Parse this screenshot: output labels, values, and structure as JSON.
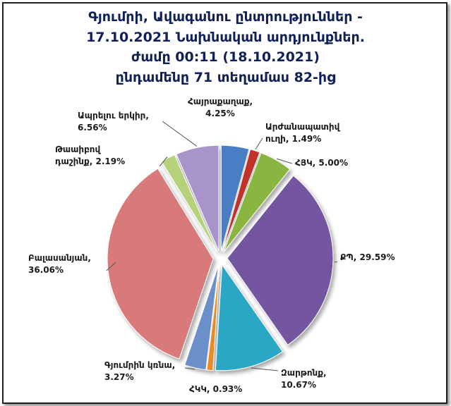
{
  "chart_data": {
    "type": "pie",
    "title_lines": [
      "Գյումրի, Ավագանու ընտրություններ -",
      "17.10.2021  Նախնական արդյունքներ.",
      "ժամը 00:11 (18.10.2021)",
      "ընդամենը 71 տեղամաս 82-ից"
    ],
    "slices": [
      {
        "name": "Հայրաքաղաք",
        "value": 4.25,
        "value_label": "4.25%",
        "color": "#4a7ec4",
        "label_lines": [
          "Հայրաքաղաք,",
          "4.25%"
        ]
      },
      {
        "name": "Արժանապատիվ ուղի",
        "value": 1.49,
        "value_label": "1.49%",
        "color": "#c0302b",
        "label_lines": [
          "Արժանապատիվ",
          "ուղի, 1.49%"
        ]
      },
      {
        "name": "ՀՅԿ",
        "value": 5.0,
        "value_label": "5.00%",
        "color": "#89b540",
        "label_lines": [
          "ՀՅԿ, 5.00%"
        ]
      },
      {
        "name": "ՔՊ",
        "value": 29.59,
        "value_label": "29.59%",
        "color": "#7355a0",
        "label_lines": [
          "ՔՊ, 29.59%"
        ]
      },
      {
        "name": "Զարթոնք",
        "value": 10.67,
        "value_label": "10.67%",
        "color": "#2aa7c4",
        "label_lines": [
          "Զարթոնք,",
          "10.67%"
        ]
      },
      {
        "name": "ՀԿԿ",
        "value": 0.93,
        "value_label": "0.93%",
        "color": "#e88a26",
        "label_lines": [
          "ՀԿԿ, 0.93%"
        ]
      },
      {
        "name": "Գյումրին կռնա",
        "value": 3.27,
        "value_label": "3.27%",
        "color": "#6b8fc9",
        "label_lines": [
          "Գյումրին կռնա,",
          "3.27%"
        ]
      },
      {
        "name": "Բալասանյան",
        "value": 36.06,
        "value_label": "36.06%",
        "color": "#d97a7a",
        "label_lines": [
          "Բալասանյան,",
          "36.06%"
        ]
      },
      {
        "name": "Թաաիբով դաշինք",
        "value": 2.19,
        "value_label": "2.19%",
        "color": "#b5d17a",
        "label_lines": [
          "Թաաիբով",
          "դաշինք, 2.19%"
        ]
      },
      {
        "name": "Ապրելու երկիր",
        "value": 6.56,
        "value_label": "6.56%",
        "color": "#a894c8",
        "label_lines": [
          "Ապրելու երկիր,",
          "6.56%"
        ]
      }
    ]
  }
}
